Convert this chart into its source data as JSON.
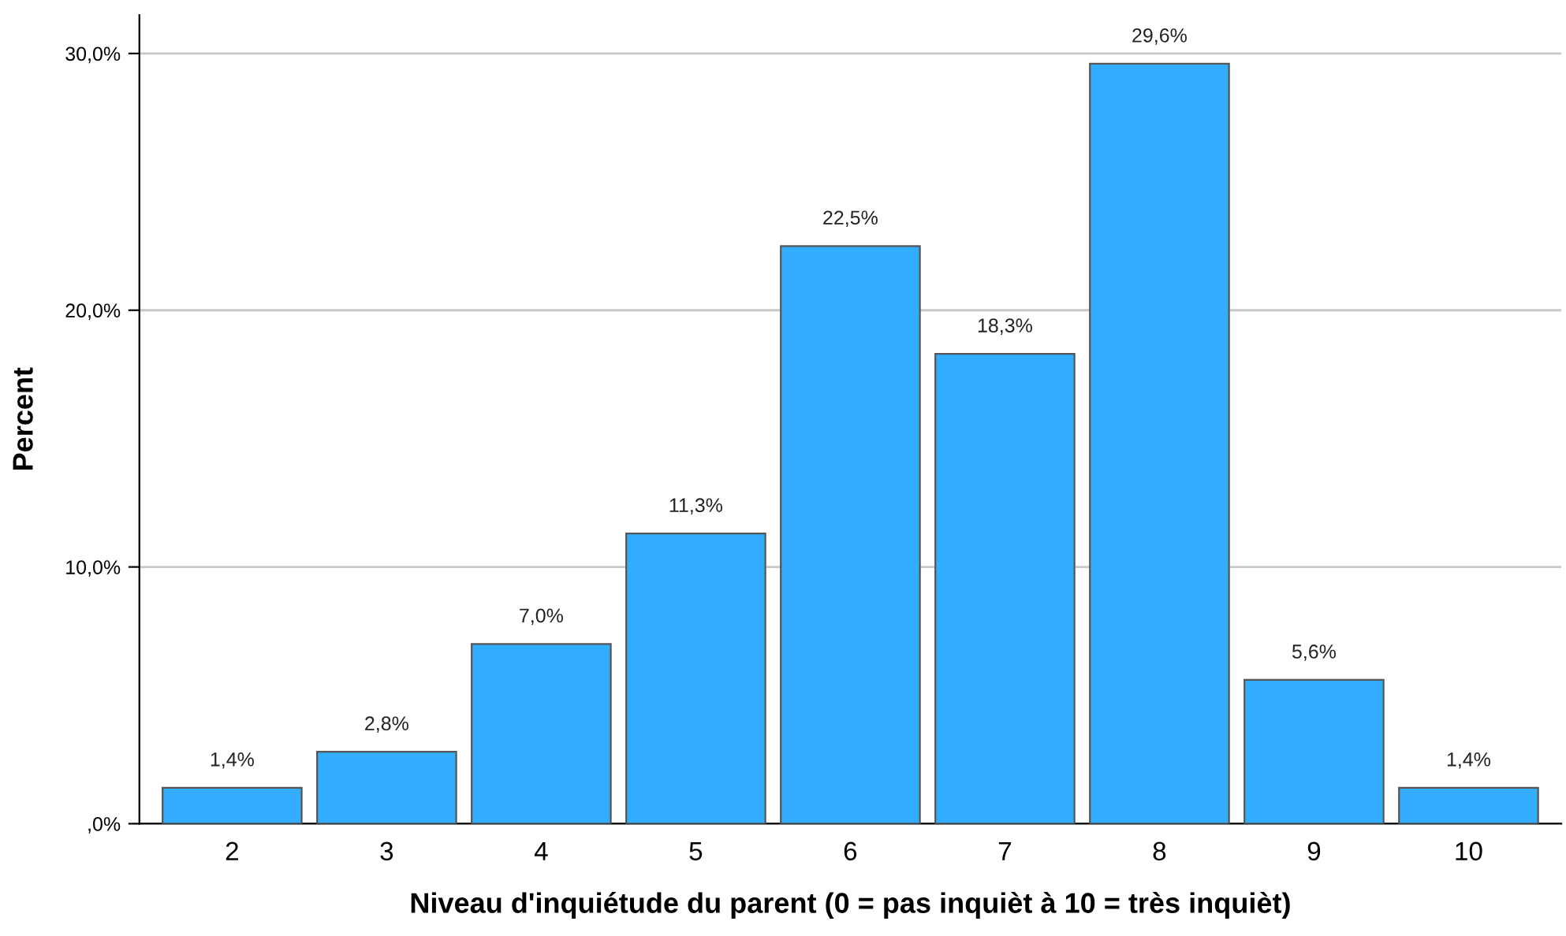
{
  "chart_data": {
    "type": "bar",
    "xlabel": "Niveau d'inquiétude du parent (0 = pas inquièt à 10 = très inquièt)",
    "ylabel": "Percent",
    "categories": [
      "2",
      "3",
      "4",
      "5",
      "6",
      "7",
      "8",
      "9",
      "10"
    ],
    "values": [
      1.4,
      2.8,
      7.0,
      11.3,
      22.5,
      18.3,
      29.6,
      5.6,
      1.4
    ],
    "value_labels": [
      "1,4%",
      "2,8%",
      "7,0%",
      "11,3%",
      "22,5%",
      "18,3%",
      "29,6%",
      "5,6%",
      "1,4%"
    ],
    "color": "#33adff",
    "ylim": [
      0,
      31.5
    ],
    "yticks": [
      {
        "value": 0,
        "label": ",0%"
      },
      {
        "value": 10,
        "label": "10,0%"
      },
      {
        "value": 20,
        "label": "20,0%"
      },
      {
        "value": 30,
        "label": "30,0%"
      }
    ],
    "grid": "y"
  }
}
